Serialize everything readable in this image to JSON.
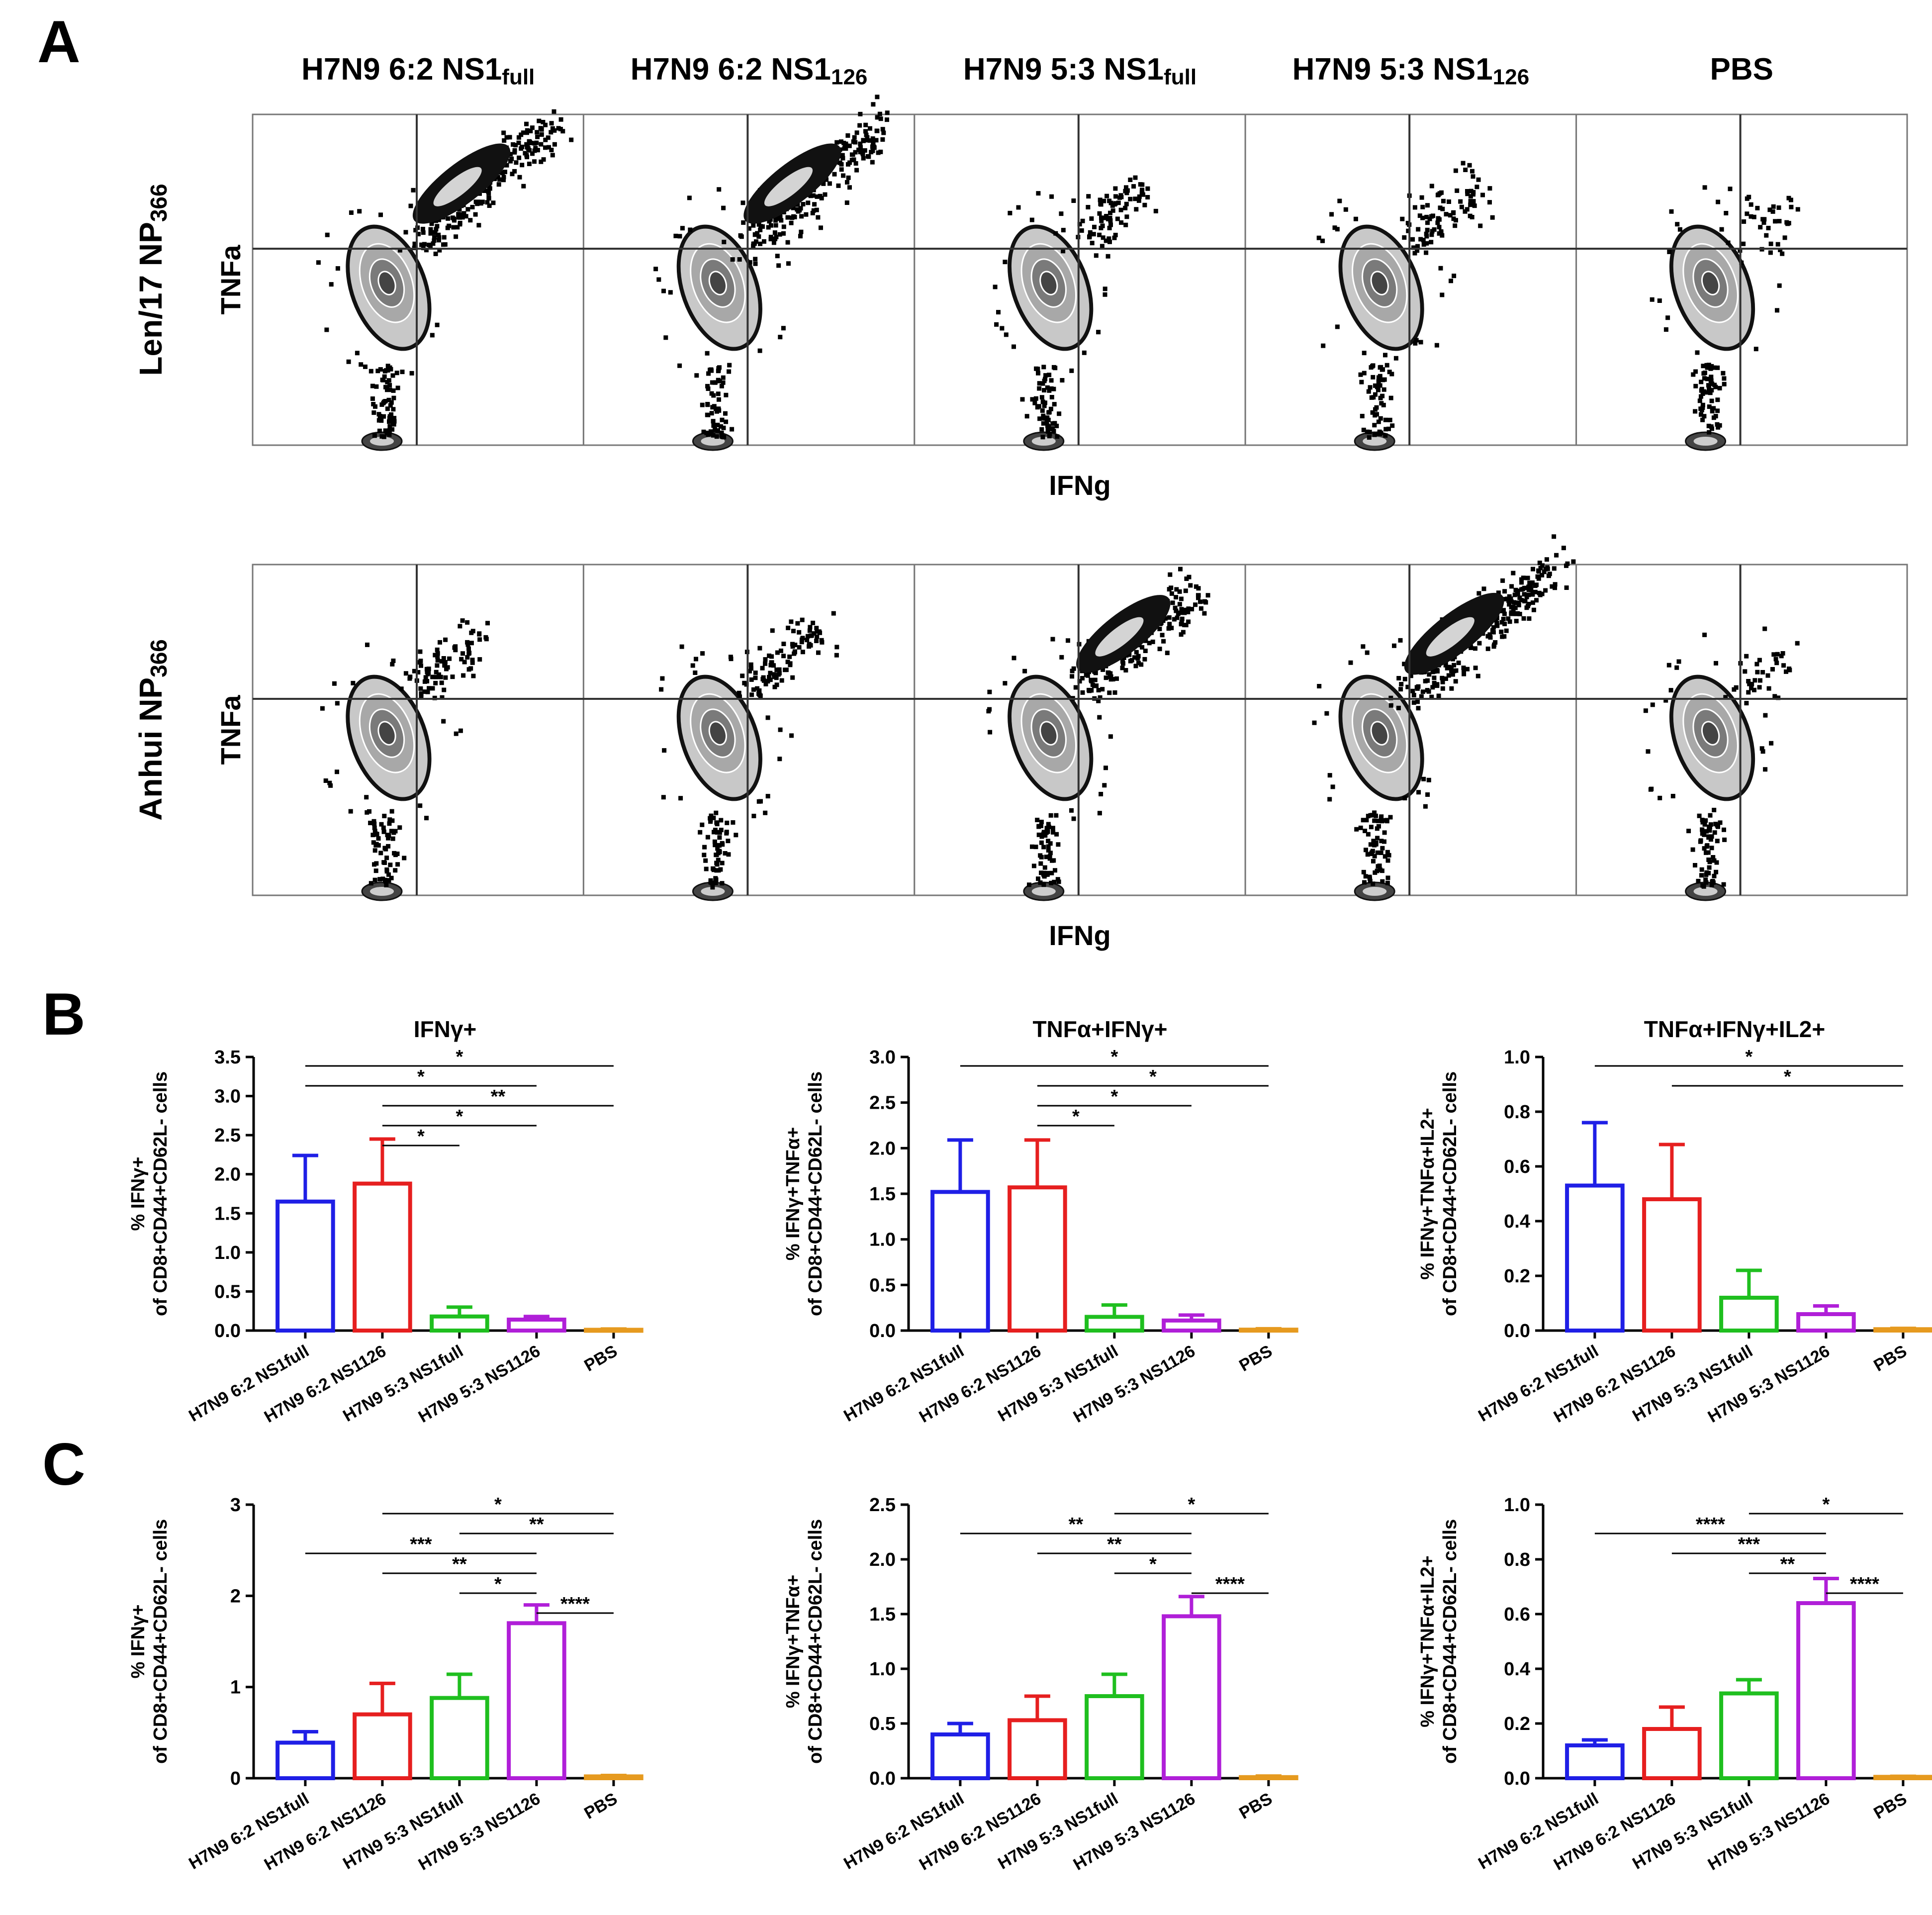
{
  "panel_letters": {
    "a": "A",
    "b": "B",
    "c": "C"
  },
  "flow": {
    "column_titles": [
      {
        "main": "H7N9 6:2 NS1",
        "sub": "full"
      },
      {
        "main": "H7N9 6:2 NS1",
        "sub": "126"
      },
      {
        "main": "H7N9 5:3 NS1",
        "sub": "full"
      },
      {
        "main": "H7N9 5:3 NS1",
        "sub": "126"
      },
      {
        "main": "PBS",
        "sub": ""
      }
    ],
    "rows": [
      {
        "label_main": "Len/17 NP",
        "label_sub": "366",
        "x_axis": "IFNg",
        "y_axis": "TNFa",
        "response_level": [
          0.85,
          0.85,
          0.25,
          0.25,
          0.05
        ]
      },
      {
        "label_main": "Anhui NP",
        "label_sub": "366",
        "x_axis": "IFNg",
        "y_axis": "TNFa",
        "response_level": [
          0.25,
          0.3,
          0.7,
          0.95,
          0.05
        ]
      }
    ]
  },
  "chart_data": [
    {
      "type": "bar",
      "panel": "B",
      "title": "IFNγ+",
      "ylabel_line1": "% IFNγ+",
      "ylabel_line2": "of CD8+CD44+CD62L- cells",
      "ylim": [
        0,
        3.5
      ],
      "yticks": [
        "0.0",
        "0.5",
        "1.0",
        "1.5",
        "2.0",
        "2.5",
        "3.0",
        "3.5"
      ],
      "categories": [
        "H7N9 6:2 NS1full",
        "H7N9 6:2 NS1126",
        "H7N9 5:3 NS1full",
        "H7N9 5:3 NS1126",
        "PBS"
      ],
      "values": [
        1.65,
        1.88,
        0.18,
        0.14,
        0.01
      ],
      "errors": [
        0.59,
        0.57,
        0.12,
        0.04,
        0.01
      ],
      "colors": [
        "#1f1fe6",
        "#e61f1f",
        "#1fbf1f",
        "#b01fd8",
        "#e69a1f"
      ],
      "comparisons": [
        {
          "from": 0,
          "to": 4,
          "label": "*"
        },
        {
          "from": 0,
          "to": 3,
          "label": "*"
        },
        {
          "from": 1,
          "to": 4,
          "label": "**"
        },
        {
          "from": 1,
          "to": 3,
          "label": "*"
        },
        {
          "from": 1,
          "to": 2,
          "label": "*"
        }
      ]
    },
    {
      "type": "bar",
      "panel": "B",
      "title": "TNFα+IFNγ+",
      "ylabel_line1": "% IFNγ+TNFα+",
      "ylabel_line2": "of CD8+CD44+CD62L- cells",
      "ylim": [
        0,
        3.0
      ],
      "yticks": [
        "0.0",
        "0.5",
        "1.0",
        "1.5",
        "2.0",
        "2.5",
        "3.0"
      ],
      "categories": [
        "H7N9 6:2 NS1full",
        "H7N9 6:2 NS1126",
        "H7N9 5:3 NS1full",
        "H7N9 5:3 NS1126",
        "PBS"
      ],
      "values": [
        1.52,
        1.57,
        0.15,
        0.11,
        0.01
      ],
      "errors": [
        0.57,
        0.52,
        0.13,
        0.06,
        0.01
      ],
      "colors": [
        "#1f1fe6",
        "#e61f1f",
        "#1fbf1f",
        "#b01fd8",
        "#e69a1f"
      ],
      "comparisons": [
        {
          "from": 0,
          "to": 4,
          "label": "*"
        },
        {
          "from": 1,
          "to": 4,
          "label": "*"
        },
        {
          "from": 1,
          "to": 3,
          "label": "*"
        },
        {
          "from": 1,
          "to": 2,
          "label": "*"
        }
      ]
    },
    {
      "type": "bar",
      "panel": "B",
      "title": "TNFα+IFNγ+IL2+",
      "ylabel_line1": "% IFNγ+TNFα+IL2+",
      "ylabel_line2": "of CD8+CD44+CD62L- cells",
      "ylim": [
        0,
        1.0
      ],
      "yticks": [
        "0.0",
        "0.2",
        "0.4",
        "0.6",
        "0.8",
        "1.0"
      ],
      "categories": [
        "H7N9 6:2 NS1full",
        "H7N9 6:2 NS1126",
        "H7N9 5:3 NS1full",
        "H7N9 5:3 NS1126",
        "PBS"
      ],
      "values": [
        0.53,
        0.48,
        0.12,
        0.06,
        0.005
      ],
      "errors": [
        0.23,
        0.2,
        0.1,
        0.03,
        0.003
      ],
      "colors": [
        "#1f1fe6",
        "#e61f1f",
        "#1fbf1f",
        "#b01fd8",
        "#e69a1f"
      ],
      "comparisons": [
        {
          "from": 0,
          "to": 4,
          "label": "*"
        },
        {
          "from": 1,
          "to": 4,
          "label": "*"
        }
      ]
    },
    {
      "type": "bar",
      "panel": "C",
      "title": "",
      "ylabel_line1": "% IFNγ+",
      "ylabel_line2": "of CD8+CD44+CD62L- cells",
      "ylim": [
        0,
        3
      ],
      "yticks": [
        "0",
        "1",
        "2",
        "3"
      ],
      "categories": [
        "H7N9 6:2 NS1full",
        "H7N9 6:2 NS1126",
        "H7N9 5:3 NS1full",
        "H7N9 5:3 NS1126",
        "PBS"
      ],
      "values": [
        0.39,
        0.7,
        0.88,
        1.7,
        0.02
      ],
      "errors": [
        0.12,
        0.34,
        0.26,
        0.2,
        0.01
      ],
      "colors": [
        "#1f1fe6",
        "#e61f1f",
        "#1fbf1f",
        "#b01fd8",
        "#e69a1f"
      ],
      "comparisons": [
        {
          "from": 1,
          "to": 4,
          "label": "*"
        },
        {
          "from": 2,
          "to": 4,
          "label": "**"
        },
        {
          "from": 0,
          "to": 3,
          "label": "***"
        },
        {
          "from": 1,
          "to": 3,
          "label": "**"
        },
        {
          "from": 2,
          "to": 3,
          "label": "*"
        },
        {
          "from": 3,
          "to": 4,
          "label": "****"
        }
      ]
    },
    {
      "type": "bar",
      "panel": "C",
      "title": "",
      "ylabel_line1": "% IFNγ+TNFα+",
      "ylabel_line2": "of CD8+CD44+CD62L- cells",
      "ylim": [
        0,
        2.5
      ],
      "yticks": [
        "0.0",
        "0.5",
        "1.0",
        "1.5",
        "2.0",
        "2.5"
      ],
      "categories": [
        "H7N9 6:2 NS1full",
        "H7N9 6:2 NS1126",
        "H7N9 5:3 NS1full",
        "H7N9 5:3 NS1126",
        "PBS"
      ],
      "values": [
        0.4,
        0.53,
        0.75,
        1.48,
        0.01
      ],
      "errors": [
        0.1,
        0.22,
        0.2,
        0.18,
        0.01
      ],
      "colors": [
        "#1f1fe6",
        "#e61f1f",
        "#1fbf1f",
        "#b01fd8",
        "#e69a1f"
      ],
      "comparisons": [
        {
          "from": 2,
          "to": 4,
          "label": "*"
        },
        {
          "from": 0,
          "to": 3,
          "label": "**"
        },
        {
          "from": 1,
          "to": 3,
          "label": "**"
        },
        {
          "from": 2,
          "to": 3,
          "label": "*"
        },
        {
          "from": 3,
          "to": 4,
          "label": "****"
        }
      ]
    },
    {
      "type": "bar",
      "panel": "C",
      "title": "",
      "ylabel_line1": "% IFNγ+TNFα+IL2+",
      "ylabel_line2": "of CD8+CD44+CD62L- cells",
      "ylim": [
        0,
        1.0
      ],
      "yticks": [
        "0.0",
        "0.2",
        "0.4",
        "0.6",
        "0.8",
        "1.0"
      ],
      "categories": [
        "H7N9 6:2 NS1full",
        "H7N9 6:2 NS1126",
        "H7N9 5:3 NS1full",
        "H7N9 5:3 NS1126",
        "PBS"
      ],
      "values": [
        0.12,
        0.18,
        0.31,
        0.64,
        0.005
      ],
      "errors": [
        0.02,
        0.08,
        0.05,
        0.09,
        0.002
      ],
      "colors": [
        "#1f1fe6",
        "#e61f1f",
        "#1fbf1f",
        "#b01fd8",
        "#e69a1f"
      ],
      "comparisons": [
        {
          "from": 2,
          "to": 4,
          "label": "*"
        },
        {
          "from": 0,
          "to": 3,
          "label": "****"
        },
        {
          "from": 1,
          "to": 3,
          "label": "***"
        },
        {
          "from": 2,
          "to": 3,
          "label": "**"
        },
        {
          "from": 3,
          "to": 4,
          "label": "****"
        }
      ]
    }
  ]
}
